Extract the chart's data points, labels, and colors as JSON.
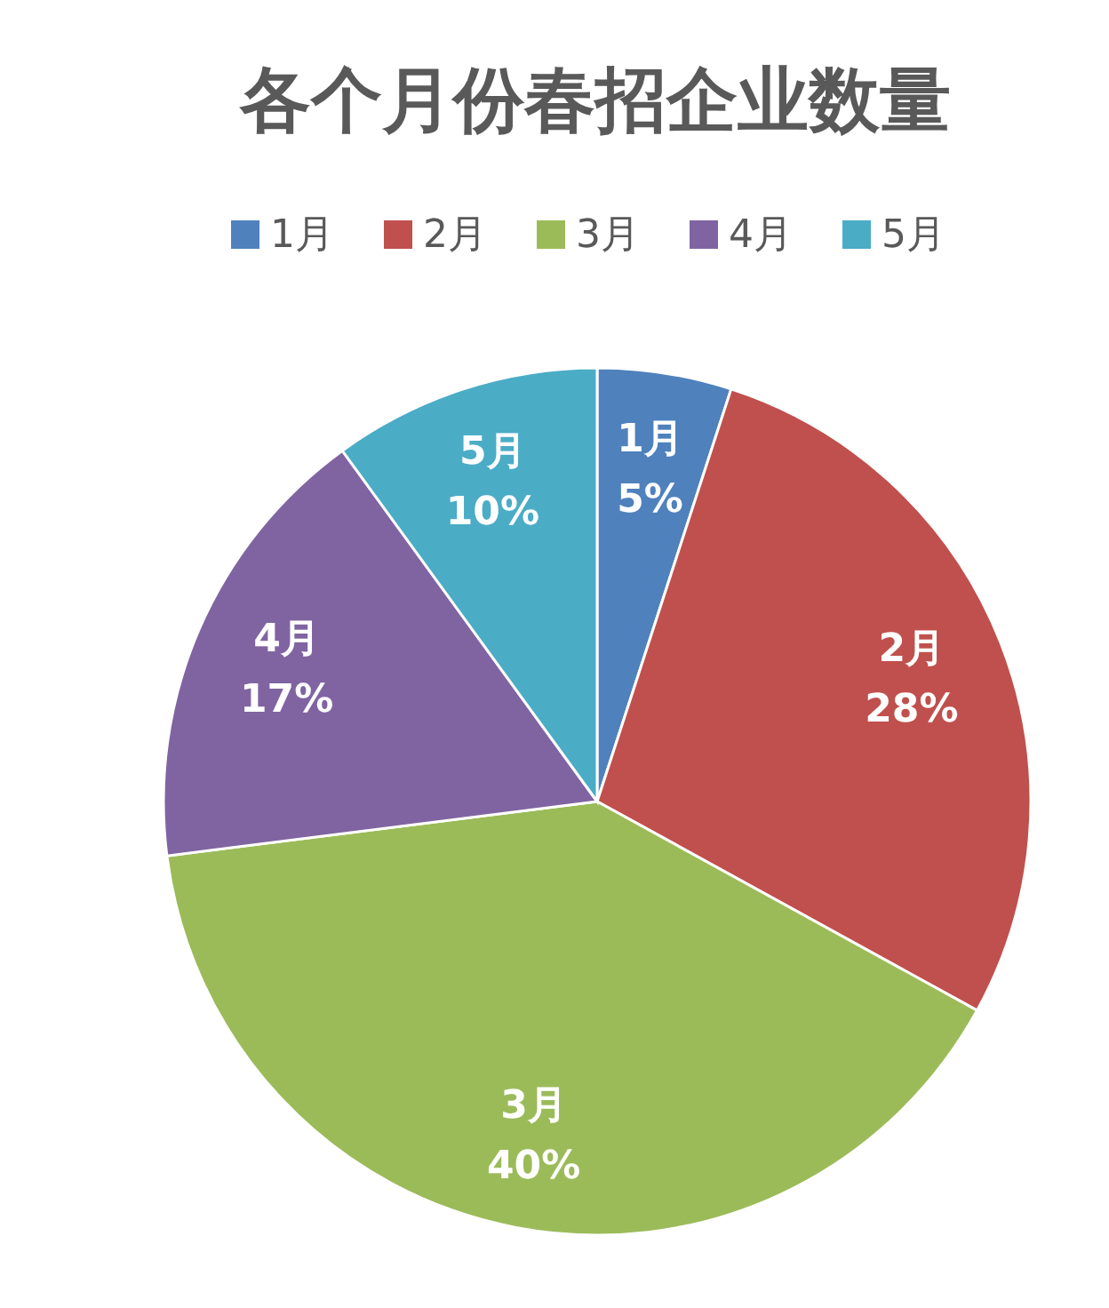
{
  "chart_data": {
    "type": "pie",
    "title": "各个月份春招企业数量",
    "categories": [
      "1月",
      "2月",
      "3月",
      "4月",
      "5月"
    ],
    "values": [
      5,
      28,
      40,
      17,
      10
    ],
    "value_labels": [
      "5%",
      "28%",
      "40%",
      "17%",
      "10%"
    ],
    "colors": [
      "#4f81bd",
      "#c0504d",
      "#9bbb59",
      "#8064a2",
      "#4bacc6"
    ],
    "legend": "top"
  }
}
